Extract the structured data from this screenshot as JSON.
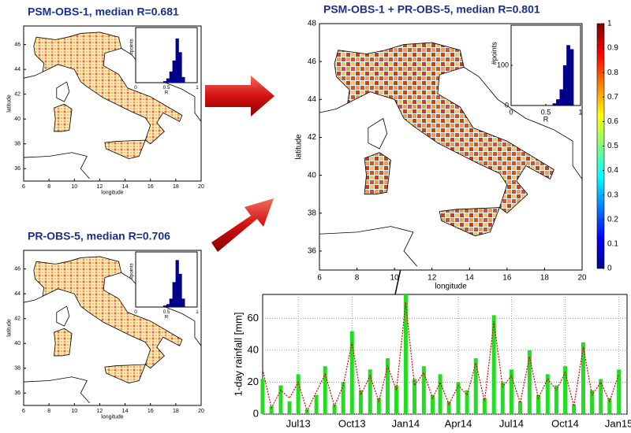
{
  "chart_data": [
    {
      "type": "map",
      "title": "PSM-OBS-1, median R=0.681",
      "xlabel": "longitude",
      "ylabel": "latitude",
      "xlim": [
        6,
        20
      ],
      "ylim": [
        35,
        47.5
      ],
      "xticks": [
        6,
        8,
        10,
        12,
        14,
        16,
        18,
        20
      ],
      "yticks": [
        36,
        38,
        40,
        42,
        44,
        46
      ],
      "inset": {
        "type": "histogram",
        "xlabel": "R",
        "ylabel": "#points",
        "color": "#00008b",
        "bins": [
          0.45,
          0.5,
          0.55,
          0.6,
          0.65,
          0.7,
          0.75,
          0.8
        ],
        "counts": [
          5,
          15,
          40,
          80,
          160,
          110,
          20
        ],
        "xlim": [
          0,
          1
        ],
        "ylim": [
          0,
          200
        ],
        "xticks": [
          0,
          0.5,
          1
        ]
      }
    },
    {
      "type": "map",
      "title": "PR-OBS-5, median R=0.706",
      "xlabel": "longitude",
      "ylabel": "latitude",
      "xlim": [
        6,
        20
      ],
      "ylim": [
        35,
        47.5
      ],
      "xticks": [
        6,
        8,
        10,
        12,
        14,
        16,
        18,
        20
      ],
      "yticks": [
        36,
        38,
        40,
        42,
        44,
        46
      ],
      "inset": {
        "type": "histogram",
        "xlabel": "R",
        "ylabel": "#points",
        "color": "#00008b",
        "bins": [
          0.45,
          0.5,
          0.55,
          0.6,
          0.65,
          0.7,
          0.75,
          0.8
        ],
        "counts": [
          5,
          10,
          30,
          90,
          170,
          120,
          30
        ],
        "xlim": [
          0,
          1
        ],
        "ylim": [
          0,
          200
        ],
        "xticks": [
          0,
          0.5,
          1
        ]
      }
    },
    {
      "type": "map",
      "title": "PSM-OBS-1 + PR-OBS-5, median R=0.801",
      "xlabel": "longitude",
      "ylabel": "latitude",
      "xlim": [
        6,
        20
      ],
      "ylim": [
        35,
        48
      ],
      "xticks": [
        6,
        8,
        10,
        12,
        14,
        16,
        18,
        20
      ],
      "yticks": [
        36,
        38,
        40,
        42,
        44,
        46,
        48
      ],
      "inset": {
        "type": "histogram",
        "xlabel": "R",
        "ylabel": "#points",
        "color": "#00008b",
        "bins": [
          0.6,
          0.65,
          0.7,
          0.75,
          0.8,
          0.85,
          0.9
        ],
        "counts": [
          5,
          15,
          40,
          100,
          150,
          140
        ],
        "xlim": [
          0,
          1
        ],
        "ylim": [
          0,
          200
        ],
        "xticks": [
          0,
          0.5,
          1
        ],
        "yticks": [
          0,
          100
        ]
      },
      "colorbar": {
        "lim": [
          0,
          1
        ],
        "ticks": [
          0,
          0.1,
          0.2,
          0.3,
          0.4,
          0.5,
          0.6,
          0.7,
          0.8,
          0.9,
          1
        ]
      }
    },
    {
      "type": "line",
      "ylabel": "1-day rainfall [mm]",
      "grid": true,
      "x": [
        "2013-05-01",
        "2013-05-16",
        "2013-06-01",
        "2013-06-16",
        "2013-07-01",
        "2013-07-16",
        "2013-08-01",
        "2013-08-16",
        "2013-09-01",
        "2013-09-16",
        "2013-10-01",
        "2013-10-16",
        "2013-11-01",
        "2013-11-16",
        "2013-12-01",
        "2013-12-16",
        "2014-01-01",
        "2014-01-16",
        "2014-02-01",
        "2014-02-16",
        "2014-03-01",
        "2014-03-16",
        "2014-04-01",
        "2014-04-16",
        "2014-05-01",
        "2014-05-16",
        "2014-06-01",
        "2014-06-16",
        "2014-07-01",
        "2014-07-16",
        "2014-08-01",
        "2014-08-16",
        "2014-09-01",
        "2014-09-16",
        "2014-10-01",
        "2014-10-16",
        "2014-11-01",
        "2014-11-16",
        "2014-12-01",
        "2014-12-16",
        "2015-01-01"
      ],
      "xlim": [
        "2013-05-01",
        "2015-01-15"
      ],
      "xticks": [
        {
          "value": "2013-07-01",
          "label": "Jul13"
        },
        {
          "value": "2013-10-01",
          "label": "Oct13"
        },
        {
          "value": "2014-01-01",
          "label": "Jan14"
        },
        {
          "value": "2014-04-01",
          "label": "Apr14"
        },
        {
          "value": "2014-07-01",
          "label": "Jul14"
        },
        {
          "value": "2014-10-01",
          "label": "Oct14"
        },
        {
          "value": "2015-01-01",
          "label": "Jan15"
        }
      ],
      "ylim": [
        0,
        75
      ],
      "yticks": [
        0,
        20,
        40,
        60
      ],
      "series": [
        {
          "color": "#22dd22",
          "style": "bars",
          "values": [
            22,
            5,
            18,
            8,
            25,
            3,
            12,
            30,
            6,
            20,
            52,
            15,
            28,
            10,
            35,
            18,
            75,
            22,
            30,
            12,
            25,
            8,
            20,
            15,
            35,
            10,
            62,
            20,
            28,
            8,
            40,
            12,
            25,
            18,
            30,
            6,
            45,
            15,
            22,
            10,
            28
          ]
        },
        {
          "color": "#dd0000",
          "style": "dotted",
          "values": [
            28,
            4,
            15,
            10,
            20,
            2,
            14,
            25,
            5,
            18,
            45,
            12,
            24,
            8,
            30,
            15,
            70,
            18,
            26,
            10,
            20,
            6,
            18,
            12,
            32,
            8,
            58,
            17,
            24,
            7,
            36,
            10,
            22,
            15,
            26,
            5,
            42,
            12,
            20,
            8,
            25
          ]
        }
      ]
    }
  ]
}
